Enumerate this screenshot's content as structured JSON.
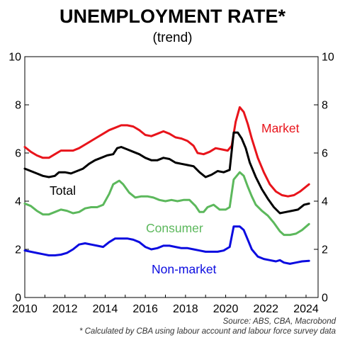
{
  "chart_data": {
    "type": "line",
    "title": "UNEMPLOYMENT RATE*",
    "subtitle": "(trend)",
    "xlabel": "",
    "ylabel": "",
    "xlim": [
      2010,
      2024.6
    ],
    "ylim": [
      0,
      10
    ],
    "x_ticks": [
      2010,
      2012,
      2014,
      2016,
      2018,
      2020,
      2022,
      2024
    ],
    "y_ticks": [
      0,
      2,
      4,
      6,
      8,
      10
    ],
    "grid": false,
    "legend": "inline labels",
    "series": [
      {
        "name": "Market",
        "color": "#e8141b",
        "points": [
          [
            2010.0,
            6.25
          ],
          [
            2010.3,
            6.05
          ],
          [
            2010.6,
            5.9
          ],
          [
            2010.9,
            5.8
          ],
          [
            2011.2,
            5.8
          ],
          [
            2011.5,
            5.95
          ],
          [
            2011.8,
            6.1
          ],
          [
            2012.1,
            6.1
          ],
          [
            2012.4,
            6.1
          ],
          [
            2012.7,
            6.2
          ],
          [
            2013.0,
            6.35
          ],
          [
            2013.3,
            6.5
          ],
          [
            2013.6,
            6.65
          ],
          [
            2013.9,
            6.8
          ],
          [
            2014.2,
            6.95
          ],
          [
            2014.5,
            7.05
          ],
          [
            2014.8,
            7.15
          ],
          [
            2015.1,
            7.15
          ],
          [
            2015.4,
            7.1
          ],
          [
            2015.7,
            6.95
          ],
          [
            2016.0,
            6.75
          ],
          [
            2016.3,
            6.7
          ],
          [
            2016.6,
            6.8
          ],
          [
            2016.9,
            6.9
          ],
          [
            2017.2,
            6.8
          ],
          [
            2017.5,
            6.65
          ],
          [
            2017.8,
            6.6
          ],
          [
            2018.1,
            6.5
          ],
          [
            2018.4,
            6.3
          ],
          [
            2018.6,
            6.0
          ],
          [
            2018.9,
            5.95
          ],
          [
            2019.2,
            6.05
          ],
          [
            2019.5,
            6.2
          ],
          [
            2019.8,
            6.15
          ],
          [
            2020.1,
            6.1
          ],
          [
            2020.3,
            6.3
          ],
          [
            2020.5,
            7.3
          ],
          [
            2020.7,
            7.9
          ],
          [
            2020.9,
            7.7
          ],
          [
            2021.1,
            7.2
          ],
          [
            2021.3,
            6.6
          ],
          [
            2021.6,
            5.8
          ],
          [
            2021.9,
            5.2
          ],
          [
            2022.2,
            4.7
          ],
          [
            2022.5,
            4.4
          ],
          [
            2022.8,
            4.25
          ],
          [
            2023.1,
            4.2
          ],
          [
            2023.4,
            4.25
          ],
          [
            2023.7,
            4.4
          ],
          [
            2024.0,
            4.6
          ],
          [
            2024.15,
            4.7
          ]
        ]
      },
      {
        "name": "Total",
        "color": "#000000",
        "points": [
          [
            2010.0,
            5.35
          ],
          [
            2010.3,
            5.25
          ],
          [
            2010.6,
            5.15
          ],
          [
            2010.9,
            5.05
          ],
          [
            2011.2,
            5.0
          ],
          [
            2011.5,
            5.05
          ],
          [
            2011.7,
            5.2
          ],
          [
            2012.0,
            5.2
          ],
          [
            2012.3,
            5.15
          ],
          [
            2012.6,
            5.25
          ],
          [
            2012.9,
            5.35
          ],
          [
            2013.2,
            5.55
          ],
          [
            2013.5,
            5.7
          ],
          [
            2013.8,
            5.8
          ],
          [
            2014.1,
            5.9
          ],
          [
            2014.4,
            5.95
          ],
          [
            2014.6,
            6.2
          ],
          [
            2014.8,
            6.25
          ],
          [
            2015.1,
            6.15
          ],
          [
            2015.4,
            6.05
          ],
          [
            2015.7,
            5.95
          ],
          [
            2016.0,
            5.8
          ],
          [
            2016.3,
            5.7
          ],
          [
            2016.6,
            5.7
          ],
          [
            2016.9,
            5.8
          ],
          [
            2017.2,
            5.75
          ],
          [
            2017.5,
            5.6
          ],
          [
            2017.8,
            5.55
          ],
          [
            2018.1,
            5.5
          ],
          [
            2018.4,
            5.45
          ],
          [
            2018.7,
            5.2
          ],
          [
            2019.0,
            5.0
          ],
          [
            2019.3,
            5.1
          ],
          [
            2019.6,
            5.25
          ],
          [
            2019.9,
            5.2
          ],
          [
            2020.2,
            5.3
          ],
          [
            2020.4,
            6.85
          ],
          [
            2020.6,
            6.85
          ],
          [
            2020.8,
            6.6
          ],
          [
            2021.0,
            6.2
          ],
          [
            2021.2,
            5.6
          ],
          [
            2021.5,
            5.0
          ],
          [
            2021.8,
            4.5
          ],
          [
            2022.1,
            4.1
          ],
          [
            2022.4,
            3.75
          ],
          [
            2022.7,
            3.5
          ],
          [
            2023.0,
            3.55
          ],
          [
            2023.3,
            3.6
          ],
          [
            2023.6,
            3.65
          ],
          [
            2023.9,
            3.85
          ],
          [
            2024.15,
            3.9
          ]
        ]
      },
      {
        "name": "Consumer",
        "color": "#5cb85c",
        "points": [
          [
            2010.0,
            3.9
          ],
          [
            2010.3,
            3.8
          ],
          [
            2010.6,
            3.6
          ],
          [
            2010.9,
            3.45
          ],
          [
            2011.2,
            3.45
          ],
          [
            2011.5,
            3.55
          ],
          [
            2011.8,
            3.65
          ],
          [
            2012.1,
            3.6
          ],
          [
            2012.4,
            3.5
          ],
          [
            2012.7,
            3.55
          ],
          [
            2013.0,
            3.7
          ],
          [
            2013.3,
            3.75
          ],
          [
            2013.6,
            3.75
          ],
          [
            2013.9,
            3.85
          ],
          [
            2014.2,
            4.3
          ],
          [
            2014.4,
            4.7
          ],
          [
            2014.7,
            4.85
          ],
          [
            2014.9,
            4.7
          ],
          [
            2015.2,
            4.35
          ],
          [
            2015.5,
            4.15
          ],
          [
            2015.8,
            4.2
          ],
          [
            2016.1,
            4.2
          ],
          [
            2016.4,
            4.15
          ],
          [
            2016.7,
            4.05
          ],
          [
            2017.0,
            4.0
          ],
          [
            2017.3,
            4.05
          ],
          [
            2017.6,
            4.0
          ],
          [
            2017.9,
            4.05
          ],
          [
            2018.2,
            4.05
          ],
          [
            2018.5,
            3.8
          ],
          [
            2018.7,
            3.55
          ],
          [
            2018.9,
            3.55
          ],
          [
            2019.1,
            3.75
          ],
          [
            2019.4,
            3.85
          ],
          [
            2019.7,
            3.65
          ],
          [
            2020.0,
            3.65
          ],
          [
            2020.2,
            3.75
          ],
          [
            2020.4,
            4.9
          ],
          [
            2020.7,
            5.2
          ],
          [
            2020.9,
            5.05
          ],
          [
            2021.1,
            4.6
          ],
          [
            2021.3,
            4.2
          ],
          [
            2021.5,
            3.85
          ],
          [
            2021.8,
            3.6
          ],
          [
            2022.1,
            3.4
          ],
          [
            2022.4,
            3.1
          ],
          [
            2022.7,
            2.75
          ],
          [
            2022.9,
            2.6
          ],
          [
            2023.2,
            2.6
          ],
          [
            2023.5,
            2.65
          ],
          [
            2023.8,
            2.8
          ],
          [
            2024.15,
            3.05
          ]
        ]
      },
      {
        "name": "Non-market",
        "color": "#0c0ce0",
        "points": [
          [
            2010.0,
            1.95
          ],
          [
            2010.3,
            1.9
          ],
          [
            2010.6,
            1.85
          ],
          [
            2010.9,
            1.8
          ],
          [
            2011.2,
            1.75
          ],
          [
            2011.5,
            1.75
          ],
          [
            2011.8,
            1.78
          ],
          [
            2012.1,
            1.85
          ],
          [
            2012.4,
            2.0
          ],
          [
            2012.7,
            2.2
          ],
          [
            2013.0,
            2.25
          ],
          [
            2013.3,
            2.2
          ],
          [
            2013.6,
            2.15
          ],
          [
            2013.9,
            2.1
          ],
          [
            2014.2,
            2.3
          ],
          [
            2014.5,
            2.45
          ],
          [
            2014.8,
            2.45
          ],
          [
            2015.1,
            2.45
          ],
          [
            2015.4,
            2.4
          ],
          [
            2015.7,
            2.3
          ],
          [
            2016.0,
            2.1
          ],
          [
            2016.3,
            2.0
          ],
          [
            2016.6,
            2.05
          ],
          [
            2016.9,
            2.15
          ],
          [
            2017.2,
            2.15
          ],
          [
            2017.5,
            2.1
          ],
          [
            2017.8,
            2.05
          ],
          [
            2018.1,
            2.05
          ],
          [
            2018.4,
            2.0
          ],
          [
            2018.7,
            1.95
          ],
          [
            2019.0,
            1.9
          ],
          [
            2019.3,
            1.9
          ],
          [
            2019.6,
            1.9
          ],
          [
            2019.9,
            1.95
          ],
          [
            2020.2,
            2.1
          ],
          [
            2020.4,
            2.95
          ],
          [
            2020.7,
            2.95
          ],
          [
            2020.9,
            2.8
          ],
          [
            2021.1,
            2.4
          ],
          [
            2021.3,
            2.0
          ],
          [
            2021.6,
            1.7
          ],
          [
            2021.9,
            1.6
          ],
          [
            2022.2,
            1.55
          ],
          [
            2022.5,
            1.5
          ],
          [
            2022.7,
            1.55
          ],
          [
            2022.9,
            1.45
          ],
          [
            2023.2,
            1.4
          ],
          [
            2023.5,
            1.45
          ],
          [
            2023.8,
            1.5
          ],
          [
            2024.15,
            1.52
          ]
        ]
      }
    ]
  },
  "series_labels": {
    "market": "Market",
    "total": "Total",
    "consumer": "Consumer",
    "non_market": "Non-market"
  },
  "footnotes": {
    "source": "Source: ABS, CBA, Macrobond",
    "note": "* Calculated by CBA using labour account and labour force survey data"
  }
}
